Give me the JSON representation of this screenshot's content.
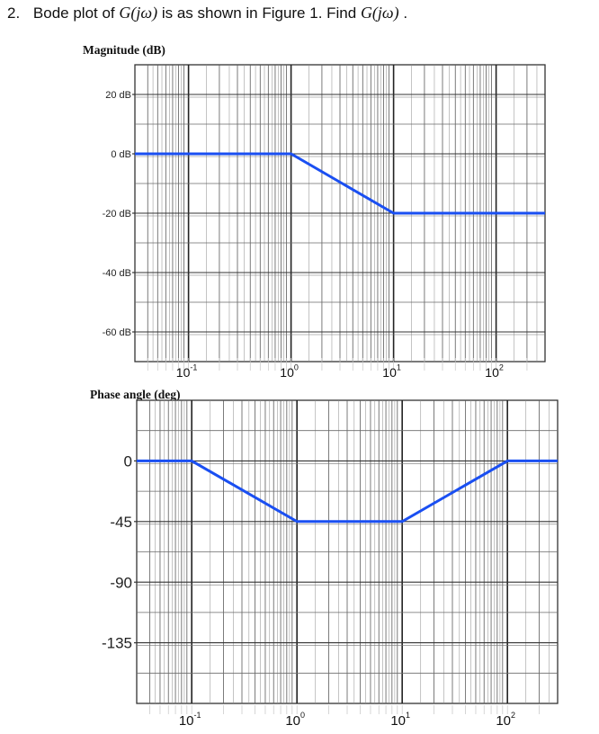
{
  "question": {
    "number": "2.",
    "text_before": "Bode plot of ",
    "g1": "G(jω)",
    "text_middle": " is as shown in Figure 1. Find ",
    "g2": "G(jω)",
    "text_after": "."
  },
  "chart_data": [
    {
      "type": "line",
      "title": "Magnitude (dB)",
      "xscale": "log",
      "xlim": [
        0.03,
        300
      ],
      "ylim": [
        -70,
        30
      ],
      "yticks": [
        20,
        0,
        -20,
        -40,
        -60
      ],
      "ytick_labels": [
        "20 dB",
        "0 dB",
        "-20 dB",
        "-40 dB",
        "-60 dB"
      ],
      "xticks": [
        {
          "base": "10",
          "exp": "-1",
          "value": 0.1
        },
        {
          "base": "10",
          "exp": "0",
          "value": 1
        },
        {
          "base": "10",
          "exp": "1",
          "value": 10
        },
        {
          "base": "10",
          "exp": "2",
          "value": 100
        }
      ],
      "grid": true,
      "color": "#1a4ff2",
      "series": [
        {
          "x": [
            0.03,
            1,
            10,
            300
          ],
          "y": [
            0,
            0,
            -20,
            -20
          ]
        }
      ]
    },
    {
      "type": "line",
      "title": "Phase angle (deg)",
      "xscale": "log",
      "xlim": [
        0.03,
        300
      ],
      "ylim": [
        -180,
        45
      ],
      "yticks": [
        0,
        -45,
        -90,
        -135
      ],
      "ytick_labels": [
        "0",
        "-45",
        "-90",
        "-135"
      ],
      "xticks": [
        {
          "base": "10",
          "exp": "-1",
          "value": 0.1
        },
        {
          "base": "10",
          "exp": "0",
          "value": 1
        },
        {
          "base": "10",
          "exp": "1",
          "value": 10
        },
        {
          "base": "10",
          "exp": "2",
          "value": 100
        }
      ],
      "grid": true,
      "color": "#1a4ff2",
      "series": [
        {
          "x": [
            0.03,
            0.1,
            1,
            10,
            100,
            300
          ],
          "y": [
            0,
            0,
            -45,
            -45,
            0,
            0
          ]
        }
      ]
    }
  ]
}
